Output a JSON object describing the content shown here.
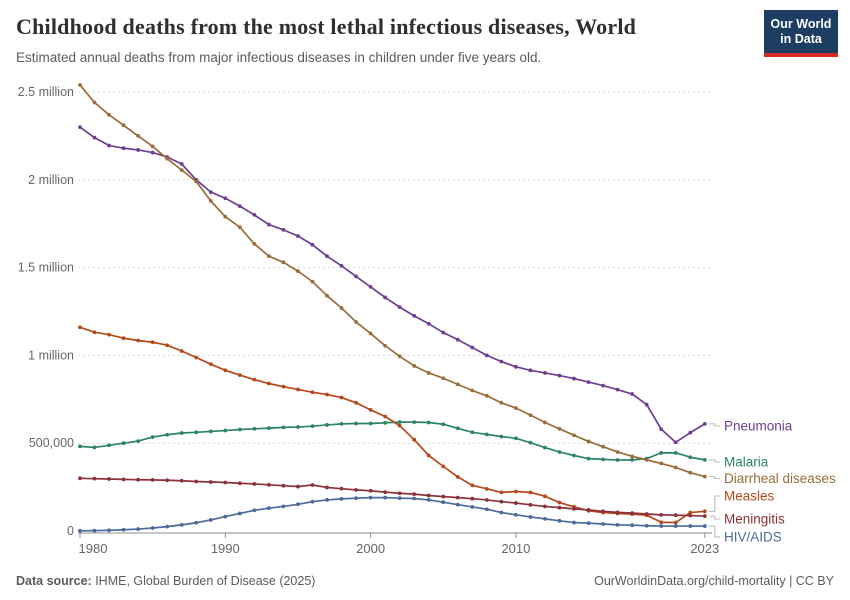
{
  "header": {
    "title": "Childhood deaths from the most lethal infectious diseases, World",
    "subtitle": "Estimated annual deaths from major infectious diseases in children under five years old.",
    "logo": {
      "line1": "Our World",
      "line2": "in Data"
    }
  },
  "footer": {
    "source_label": "Data source:",
    "source_text": " IHME, Global Burden of Disease (2025)",
    "attribution": "OurWorldinData.org/child-mortality | CC BY"
  },
  "colors": {
    "logo_bg": "#1d3d63",
    "logo_underline": "#d42b21",
    "gridline": "#d8d8d8",
    "axis": "#8f8f8f",
    "tick_label": "#666666",
    "legend_connector": "#bbbbbb"
  },
  "chart_data": {
    "type": "line",
    "title": "Childhood deaths from the most lethal infectious diseases, World",
    "xlabel": "",
    "ylabel": "",
    "x_range": [
      1980,
      2023
    ],
    "ylim": [
      0,
      2600000
    ],
    "grid": "horizontal-dashed",
    "legend_position": "right-of-line-ends",
    "xticks": [
      1980,
      1990,
      2000,
      2010,
      2023
    ],
    "yticks": [
      {
        "value": 0,
        "label": "0"
      },
      {
        "value": 500000,
        "label": "500,000"
      },
      {
        "value": 1000000,
        "label": "1 million"
      },
      {
        "value": 1500000,
        "label": "1.5 million"
      },
      {
        "value": 2000000,
        "label": "2 million"
      },
      {
        "value": 2500000,
        "label": "2.5 million"
      }
    ],
    "x": [
      1980,
      1981,
      1982,
      1983,
      1984,
      1985,
      1986,
      1987,
      1988,
      1989,
      1990,
      1991,
      1992,
      1993,
      1994,
      1995,
      1996,
      1997,
      1998,
      1999,
      2000,
      2001,
      2002,
      2003,
      2004,
      2005,
      2006,
      2007,
      2008,
      2009,
      2010,
      2011,
      2012,
      2013,
      2014,
      2015,
      2016,
      2017,
      2018,
      2019,
      2020,
      2021,
      2022,
      2023
    ],
    "series": [
      {
        "name": "Pneumonia",
        "color": "#6D3E91",
        "values": [
          2300000,
          2240000,
          2195000,
          2180000,
          2170000,
          2155000,
          2130000,
          2090000,
          2000000,
          1930000,
          1895000,
          1850000,
          1800000,
          1745000,
          1715000,
          1680000,
          1630000,
          1565000,
          1510000,
          1450000,
          1390000,
          1330000,
          1275000,
          1225000,
          1180000,
          1130000,
          1090000,
          1045000,
          1000000,
          965000,
          935000,
          915000,
          900000,
          885000,
          868000,
          848000,
          828000,
          805000,
          780000,
          720000,
          580000,
          505000,
          560000,
          610000
        ]
      },
      {
        "name": "Malaria",
        "color": "#2C8465",
        "values": [
          482000,
          476000,
          488000,
          500000,
          512000,
          535000,
          548000,
          558000,
          562000,
          567000,
          572000,
          578000,
          582000,
          586000,
          590000,
          592000,
          597000,
          604000,
          610000,
          612000,
          612000,
          616000,
          620000,
          620000,
          618000,
          608000,
          585000,
          562000,
          550000,
          538000,
          528000,
          503000,
          475000,
          450000,
          430000,
          412000,
          408000,
          404000,
          405000,
          412000,
          445000,
          445000,
          420000,
          405000
        ]
      },
      {
        "name": "Diarrheal diseases",
        "color": "#996D39",
        "values": [
          2540000,
          2440000,
          2370000,
          2310000,
          2250000,
          2190000,
          2120000,
          2055000,
          1990000,
          1880000,
          1790000,
          1730000,
          1635000,
          1565000,
          1530000,
          1480000,
          1420000,
          1340000,
          1270000,
          1190000,
          1125000,
          1055000,
          995000,
          940000,
          900000,
          870000,
          835000,
          800000,
          770000,
          730000,
          700000,
          660000,
          618000,
          582000,
          545000,
          510000,
          480000,
          450000,
          425000,
          405000,
          385000,
          362000,
          332000,
          310000
        ]
      },
      {
        "name": "Measles",
        "color": "#B5491B",
        "values": [
          1160000,
          1132000,
          1118000,
          1098000,
          1085000,
          1075000,
          1058000,
          1025000,
          988000,
          950000,
          915000,
          888000,
          862000,
          840000,
          822000,
          806000,
          790000,
          777000,
          760000,
          730000,
          690000,
          652000,
          600000,
          520000,
          430000,
          368000,
          308000,
          260000,
          240000,
          220000,
          225000,
          220000,
          198000,
          162000,
          138000,
          115000,
          105000,
          100000,
          96000,
          90000,
          50000,
          48000,
          105000,
          112000
        ]
      },
      {
        "name": "Meningitis",
        "color": "#8C3039",
        "values": [
          300000,
          298000,
          296000,
          294000,
          292000,
          291000,
          289000,
          286000,
          282000,
          279000,
          276000,
          272000,
          268000,
          263000,
          258000,
          253000,
          262000,
          248000,
          241000,
          234000,
          229000,
          221000,
          215000,
          210000,
          202000,
          196000,
          190000,
          184000,
          177000,
          167000,
          159000,
          149000,
          140000,
          133000,
          126000,
          120000,
          112000,
          106000,
          102000,
          97000,
          92000,
          90000,
          88000,
          85000
        ]
      },
      {
        "name": "HIV/AIDS",
        "color": "#4C6A9C",
        "values": [
          1000,
          2000,
          4000,
          7000,
          11000,
          17000,
          25000,
          35000,
          47000,
          63000,
          82000,
          100000,
          118000,
          130000,
          140000,
          152000,
          167000,
          177000,
          183000,
          187000,
          190000,
          190000,
          187000,
          185000,
          177000,
          164000,
          150000,
          137000,
          124000,
          105000,
          92000,
          80000,
          69000,
          58000,
          48000,
          45000,
          40000,
          35000,
          33000,
          30000,
          28000,
          28000,
          28000,
          28000
        ]
      }
    ]
  }
}
